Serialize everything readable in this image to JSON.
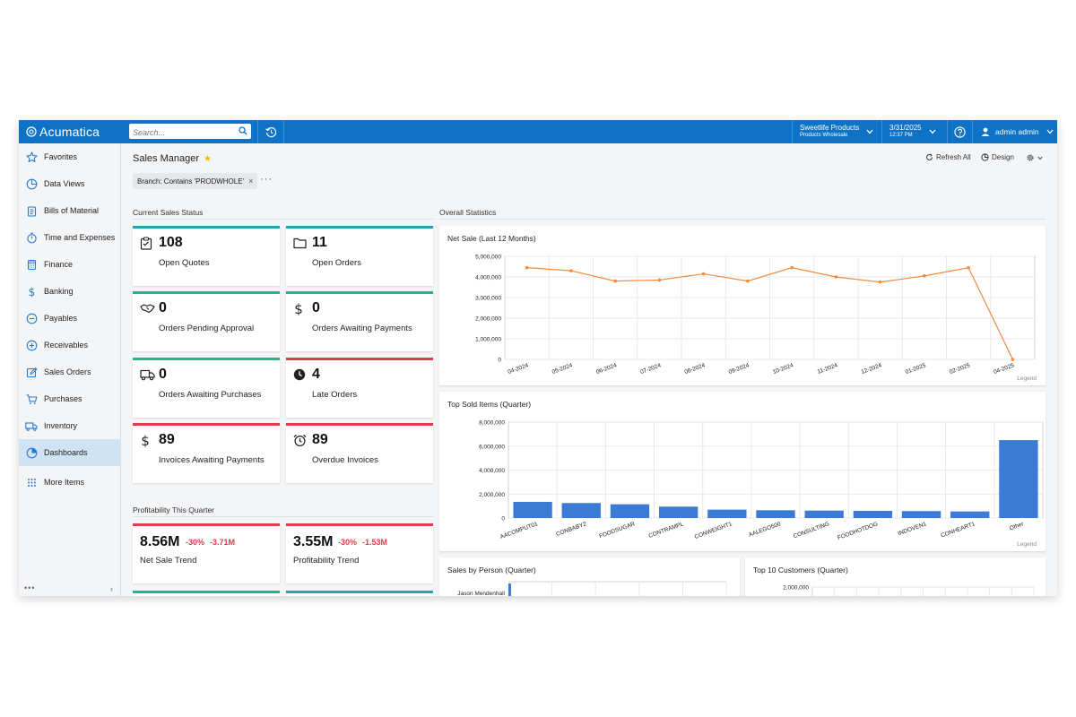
{
  "app": {
    "logo_text": "Acumatica",
    "search_placeholder": "Search...",
    "company": {
      "name": "Sweetlife Products",
      "branch": "Products Wholesale"
    },
    "datetime": {
      "date": "3/31/2025",
      "time": "12:37 PM"
    },
    "user": "admin admin"
  },
  "sidebar": {
    "items": [
      {
        "label": "Favorites",
        "icon": "star-icon"
      },
      {
        "label": "Data Views",
        "icon": "pie-icon"
      },
      {
        "label": "Bills of Material",
        "icon": "clipboard-icon"
      },
      {
        "label": "Time and Expenses",
        "icon": "stopwatch-icon"
      },
      {
        "label": "Finance",
        "icon": "calculator-icon"
      },
      {
        "label": "Banking",
        "icon": "dollar-icon"
      },
      {
        "label": "Payables",
        "icon": "minus-circle-icon"
      },
      {
        "label": "Receivables",
        "icon": "plus-circle-icon"
      },
      {
        "label": "Sales Orders",
        "icon": "edit-icon"
      },
      {
        "label": "Purchases",
        "icon": "cart-icon"
      },
      {
        "label": "Inventory",
        "icon": "truck-icon"
      },
      {
        "label": "Dashboards",
        "icon": "dashboard-pie-icon",
        "active": true
      },
      {
        "label": "More Items",
        "icon": "grid-icon"
      }
    ],
    "footer_dots": "•••",
    "collapse_glyph": "‹"
  },
  "page": {
    "title": "Sales Manager",
    "toolbar": {
      "refresh": "Refresh All",
      "design": "Design"
    },
    "filter": "Branch: Contains 'PRODWHOLE'",
    "filter_remove": "×",
    "more": "···"
  },
  "sections": {
    "current_status": "Current Sales Status",
    "overall": "Overall Statistics",
    "profitability": "Profitability This Quarter"
  },
  "kpis": [
    {
      "value": "108",
      "label": "Open Quotes",
      "icon": "clipboard-list-icon",
      "accent": "#27a3b4"
    },
    {
      "value": "11",
      "label": "Open Orders",
      "icon": "folder-icon",
      "accent": "#27a3b4"
    },
    {
      "value": "0",
      "label": "Orders Pending Approval",
      "icon": "handshake-icon",
      "accent": "#1db98a"
    },
    {
      "value": "0",
      "label": "Orders Awaiting Payments",
      "icon": "dollar-icon",
      "accent": "#1db98a"
    },
    {
      "value": "0",
      "label": "Orders Awaiting Purchases",
      "icon": "truck-icon",
      "accent": "#1db98a"
    },
    {
      "value": "4",
      "label": "Late Orders",
      "icon": "clock-icon",
      "accent": "#e03c4b"
    },
    {
      "value": "89",
      "label": "Invoices Awaiting Payments",
      "icon": "dollar-icon",
      "accent": "#e03c4b"
    },
    {
      "value": "89",
      "label": "Overdue Invoices",
      "icon": "alarm-clock-icon",
      "accent": "#e03c4b"
    }
  ],
  "profitability": [
    {
      "value": "8.56M",
      "pct": "-30%",
      "delta": "-3.71M",
      "label": "Net Sale Trend"
    },
    {
      "value": "3.55M",
      "pct": "-30%",
      "delta": "-1.53M",
      "label": "Profitability Trend"
    }
  ],
  "panels": {
    "net_sale_title": "Net Sale (Last 12 Months)",
    "top_sold_title": "Top Sold Items (Quarter)",
    "sales_person_title": "Sales by Person (Quarter)",
    "top_customers_title": "Top 10 Customers (Quarter)",
    "legend": "Legend"
  },
  "chart_data": [
    {
      "type": "line",
      "title": "Net Sale (Last 12 Months)",
      "categories": [
        "04-2024",
        "05-2024",
        "06-2024",
        "07-2024",
        "08-2024",
        "09-2024",
        "10-2024",
        "11-2024",
        "12-2024",
        "01-2025",
        "02-2025",
        "04-2025"
      ],
      "values": [
        4450000,
        4300000,
        3800000,
        3850000,
        4150000,
        3800000,
        4450000,
        4000000,
        3750000,
        4050000,
        4450000,
        0
      ],
      "yticks": [
        "0",
        "1,000,000",
        "2,000,000",
        "3,000,000",
        "4,000,000",
        "5,000,000"
      ],
      "ylim": [
        0,
        5000000
      ],
      "color": "#f58a3d"
    },
    {
      "type": "bar",
      "title": "Top Sold Items (Quarter)",
      "categories": [
        "AACOMPUT01",
        "CONBABY2",
        "FOODSUGAR",
        "CONTRAMPL",
        "CONWEIGHT1",
        "AALEGO500",
        "CONSULTING",
        "FOODHOTDOG",
        "INDOVEN1",
        "CONHEART1",
        "Other"
      ],
      "values": [
        1350000,
        1250000,
        1150000,
        950000,
        700000,
        650000,
        620000,
        600000,
        580000,
        550000,
        6500000
      ],
      "yticks": [
        "0",
        "2,000,000",
        "4,000,000",
        "6,000,000",
        "8,000,000"
      ],
      "ylim": [
        0,
        8000000
      ],
      "color": "#3a7bd5"
    },
    {
      "type": "bar",
      "title": "Sales by Person (Quarter)",
      "categories": [
        "Jason Mendenhall"
      ]
    },
    {
      "type": "bar",
      "title": "Top 10 Customers (Quarter)",
      "yticks": [
        "2,000,000"
      ]
    }
  ]
}
